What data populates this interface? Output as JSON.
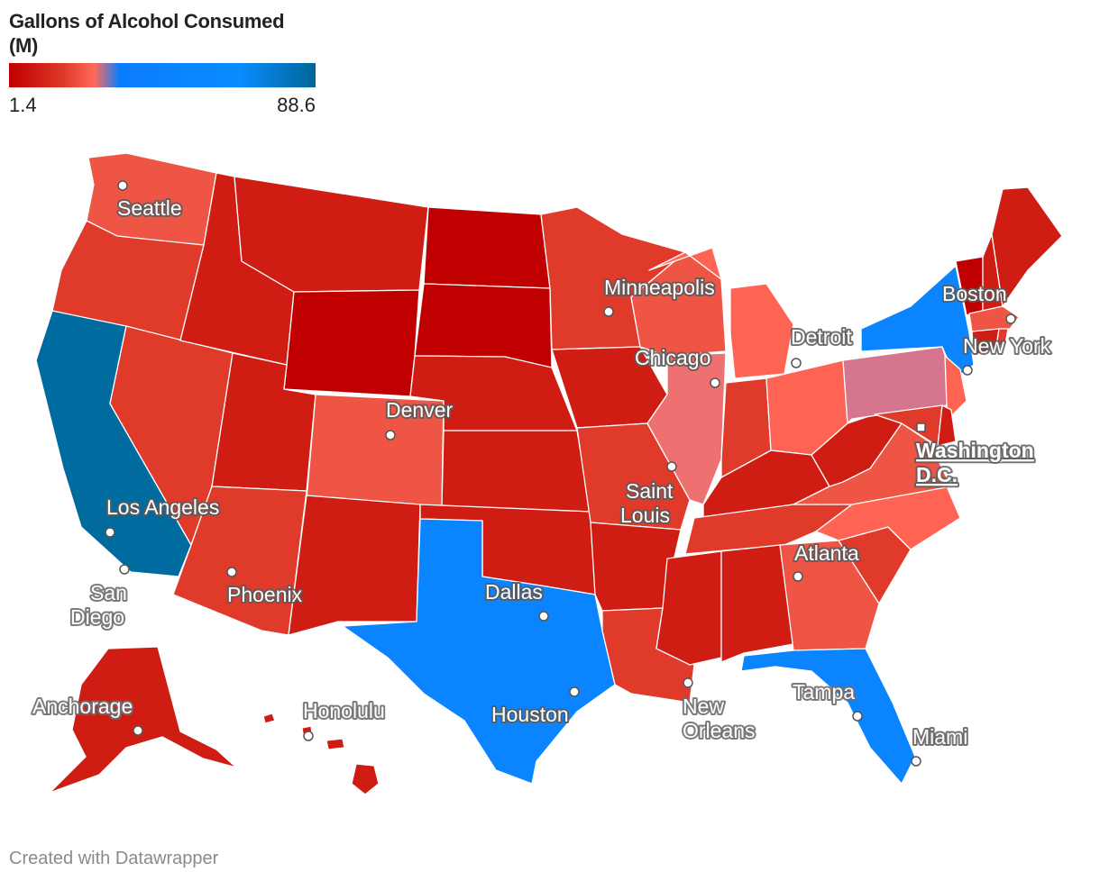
{
  "legend": {
    "title": "Gallons of Alcohol Consumed (M)",
    "min_label": "1.4",
    "max_label": "88.6",
    "gradient": [
      "#c00000",
      "#e03a2a",
      "#ff6a5a",
      "#0a7cff",
      "#0a8cff",
      "#006699"
    ]
  },
  "colors": {
    "darkest_red": "#c00000",
    "dark_red": "#cf1d14",
    "red": "#e03a2a",
    "light_red": "#ef5545",
    "salmon": "#ff6354",
    "pink": "#ee7070",
    "mauve": "#d6768e",
    "blue": "#0a84ff",
    "dark_blue": "#006b9e"
  },
  "cities": [
    {
      "name": "Seattle"
    },
    {
      "name": "Minneapolis"
    },
    {
      "name": "Boston"
    },
    {
      "name": "Detroit"
    },
    {
      "name": "New York"
    },
    {
      "name": "Chicago"
    },
    {
      "name": "Denver"
    },
    {
      "name": "Washington D.C."
    },
    {
      "name": "Saint Louis"
    },
    {
      "name": "Los Angeles"
    },
    {
      "name": "Atlanta"
    },
    {
      "name": "San Diego"
    },
    {
      "name": "Phoenix"
    },
    {
      "name": "Dallas"
    },
    {
      "name": "Anchorage"
    },
    {
      "name": "Honolulu"
    },
    {
      "name": "Houston"
    },
    {
      "name": "New Orleans"
    },
    {
      "name": "Tampa"
    },
    {
      "name": "Miami"
    }
  ],
  "footer": {
    "credit": "Created with Datawrapper"
  }
}
